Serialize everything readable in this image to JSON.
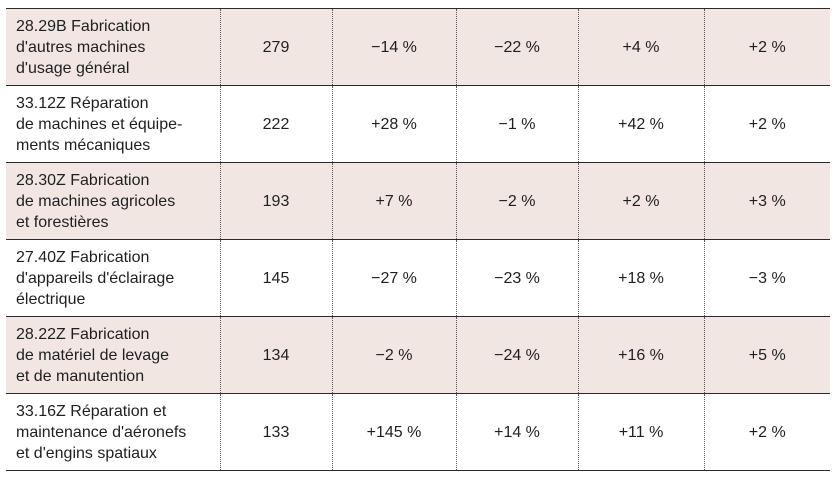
{
  "rows": [
    {
      "label": [
        "28.29B Fabrication",
        "d'autres machines",
        "d'usage général"
      ],
      "values": [
        "279",
        "−14 %",
        "−22 %",
        "+4 %",
        "+2 %"
      ]
    },
    {
      "label": [
        "33.12Z Réparation",
        "de machines et équipe-",
        "ments mécaniques"
      ],
      "values": [
        "222",
        "+28 %",
        "−1 %",
        "+42 %",
        "+2 %"
      ]
    },
    {
      "label": [
        "28.30Z Fabrication",
        "de machines agricoles",
        "et forestières"
      ],
      "values": [
        "193",
        "+7 %",
        "−2 %",
        "+2 %",
        "+3 %"
      ]
    },
    {
      "label": [
        "27.40Z Fabrication",
        "d'appareils d'éclairage",
        "électrique"
      ],
      "values": [
        "145",
        "−27 %",
        "−23 %",
        "+18 %",
        "−3 %"
      ]
    },
    {
      "label": [
        "28.22Z Fabrication",
        "de matériel de levage",
        "et de manutention"
      ],
      "values": [
        "134",
        "−2 %",
        "−24 %",
        "+16 %",
        "+5 %"
      ]
    },
    {
      "label": [
        "33.16Z Réparation et",
        "maintenance d'aéronefs",
        "et d'engins spatiaux"
      ],
      "values": [
        "133",
        "+145 %",
        "+14 %",
        "+11 %",
        "+2 %"
      ]
    }
  ],
  "colors": {
    "shaded_row": "#f1e6e2",
    "plain_row": "#ffffff",
    "rule": "#2a2a2a"
  }
}
